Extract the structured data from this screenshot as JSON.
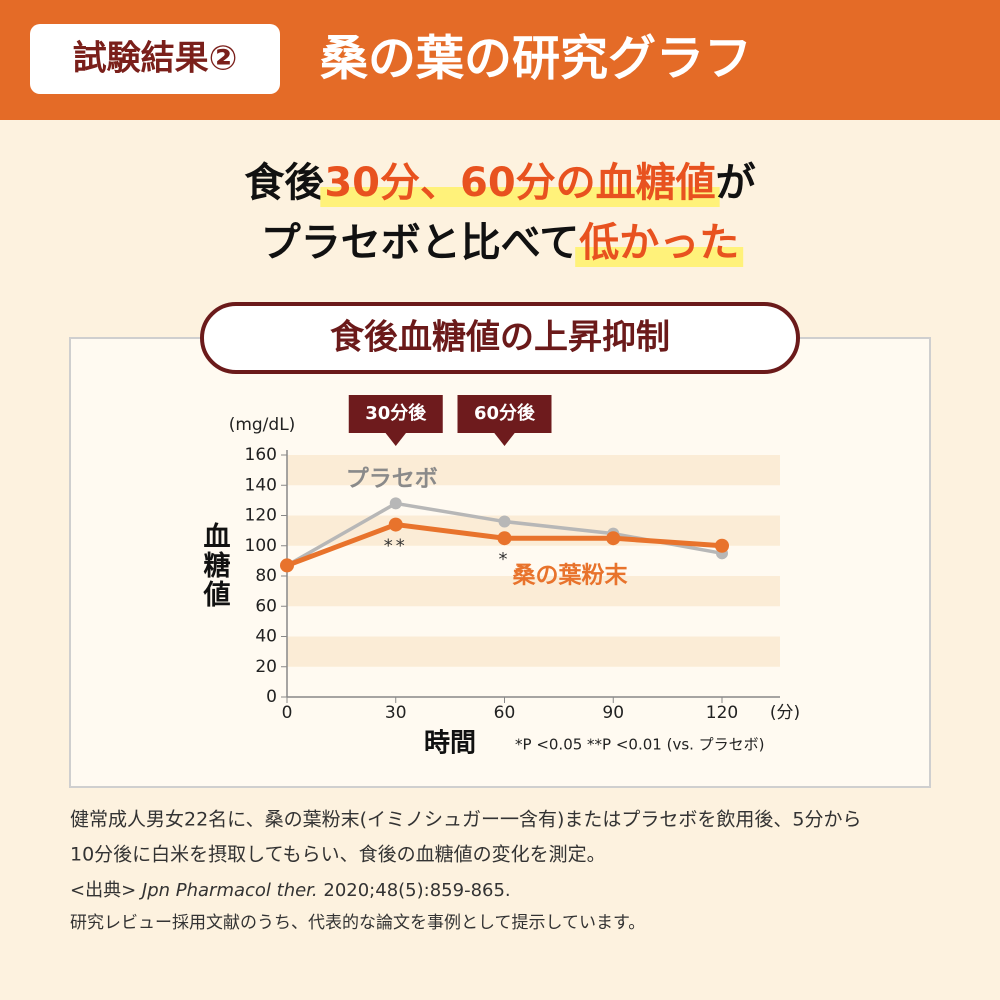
{
  "header": {
    "label": "試験結果②",
    "title": "桑の葉の研究グラフ"
  },
  "headline": {
    "line1": [
      "食後",
      "30分、60分の血糖値",
      "が"
    ],
    "line2": [
      "プラセボと比べて",
      "低かった"
    ]
  },
  "chart_title": "食後血糖値の上昇抑制",
  "chart_data": {
    "type": "line",
    "x": [
      0,
      30,
      60,
      90,
      120
    ],
    "xlim": [
      0,
      136
    ],
    "xticks": [
      0,
      30,
      60,
      90,
      120
    ],
    "ylim": [
      0,
      160
    ],
    "yticks": [
      0,
      20,
      40,
      60,
      80,
      100,
      120,
      140,
      160
    ],
    "y_unit": "(mg/dL)",
    "ylabel": "血糖値",
    "xlabel": "時間",
    "x_unit": "(分)",
    "bands": true,
    "series": [
      {
        "name": "プラセボ",
        "color": "#b7b7b7",
        "values": [
          87,
          128,
          116,
          108,
          95
        ]
      },
      {
        "name": "桑の葉粉末",
        "color": "#e8732c",
        "values": [
          87,
          114,
          105,
          105,
          100
        ]
      }
    ],
    "callouts": [
      {
        "text": "30分後",
        "x": 30
      },
      {
        "text": "60分後",
        "x": 60
      }
    ],
    "significance": [
      {
        "text": "**",
        "x": 30
      },
      {
        "text": "*",
        "x": 60
      }
    ],
    "footnote": "*P <0.05 **P <0.01 (vs. プラセボ)"
  },
  "notes": [
    "健常成人男女22名に、桑の葉粉末(イミノシュガー一含有)またはプラセボを飲用後、5分から",
    "10分後に白米を摂取してもらい、食後の血糖値の変化を測定。"
  ],
  "source": [
    "<出典> ",
    "Jpn Pharmacol ther.",
    " 2020;48(5):859-865."
  ],
  "disclaimer": "研究レビュー採用文献のうち、代表的な論文を事例として提示しています。"
}
